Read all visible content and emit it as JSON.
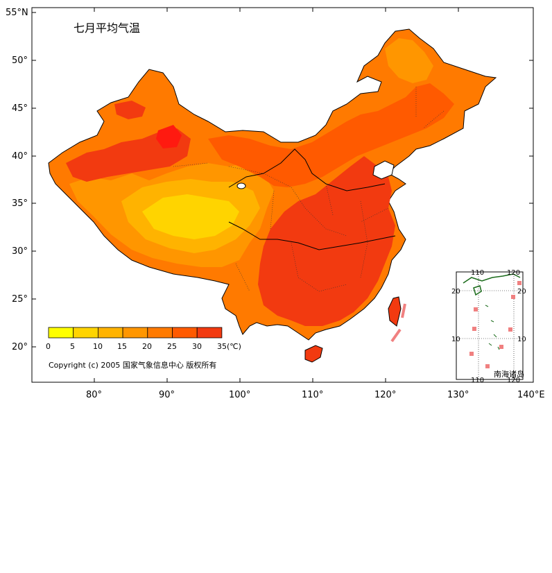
{
  "map": {
    "title": "七月平均气温",
    "copyright": "Copyright (c) 2005 国家气象信息中心 版权所有",
    "lat_ticks": [
      "55°N",
      "50°",
      "45°",
      "40°",
      "35°",
      "30°",
      "25°",
      "20°"
    ],
    "lon_ticks": [
      "80°",
      "90°",
      "100°",
      "110°",
      "120°",
      "130°",
      "140°E"
    ],
    "legend": {
      "labels": [
        "0",
        "5",
        "10",
        "15",
        "20",
        "25",
        "30",
        "35(℃)"
      ],
      "colors": [
        "#ffff00",
        "#ffd400",
        "#ffb300",
        "#ff9600",
        "#ff7a00",
        "#ff5a00",
        "#f23a10",
        "#ff1a10"
      ]
    },
    "inset": {
      "name": "南海诸岛",
      "top_ticks": [
        "110",
        "120"
      ],
      "bottom_ticks": [
        "110",
        "120"
      ],
      "left_ticks": [
        "20",
        "10"
      ],
      "right_ticks": [
        "20",
        "10"
      ]
    }
  }
}
